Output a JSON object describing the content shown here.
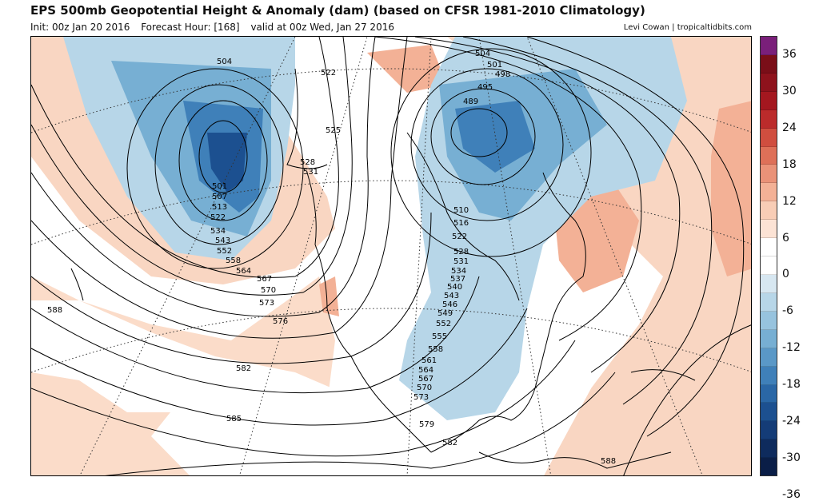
{
  "header": {
    "title": "EPS 500mb Geopotential Height & Anomaly (dam) (based on CFSR 1981-2010 Climatology)",
    "init": "Init: 00z Jan 20 2016",
    "forecast_hour": "Forecast Hour: [168]",
    "valid": "valid at 00z Wed, Jan 27 2016",
    "credit": "Levi Cowan | tropicaltidbits.com"
  },
  "colorbar": {
    "labels": [
      "36",
      "30",
      "24",
      "18",
      "12",
      "6",
      "0",
      "-6",
      "-12",
      "-18",
      "-24",
      "-30",
      "-36"
    ],
    "colors": [
      "#7a1f7a",
      "#7a0e18",
      "#8e121c",
      "#a4171f",
      "#bb2b2b",
      "#d04e3f",
      "#de7058",
      "#ea9278",
      "#f3b196",
      "#f8cdb6",
      "#fce3d5",
      "#ffffff",
      "#ffffff",
      "#d7e7f1",
      "#b7d6e8",
      "#97c3de",
      "#77afd3",
      "#5a98c7",
      "#3f80b9",
      "#2a67a6",
      "#1c5090",
      "#143c77",
      "#0e2b5d",
      "#0a1e47"
    ]
  },
  "map": {
    "contour_labels": [
      "504",
      "504",
      "501",
      "498",
      "495",
      "489",
      "522",
      "525",
      "528",
      "531",
      "501",
      "507",
      "513",
      "522",
      "534",
      "543",
      "552",
      "558",
      "564",
      "567",
      "570",
      "573",
      "576",
      "582",
      "585",
      "588",
      "510",
      "516",
      "522",
      "528",
      "531",
      "534",
      "537",
      "540",
      "543",
      "546",
      "549",
      "552",
      "555",
      "558",
      "561",
      "564",
      "567",
      "570",
      "573",
      "579",
      "582",
      "588"
    ]
  }
}
